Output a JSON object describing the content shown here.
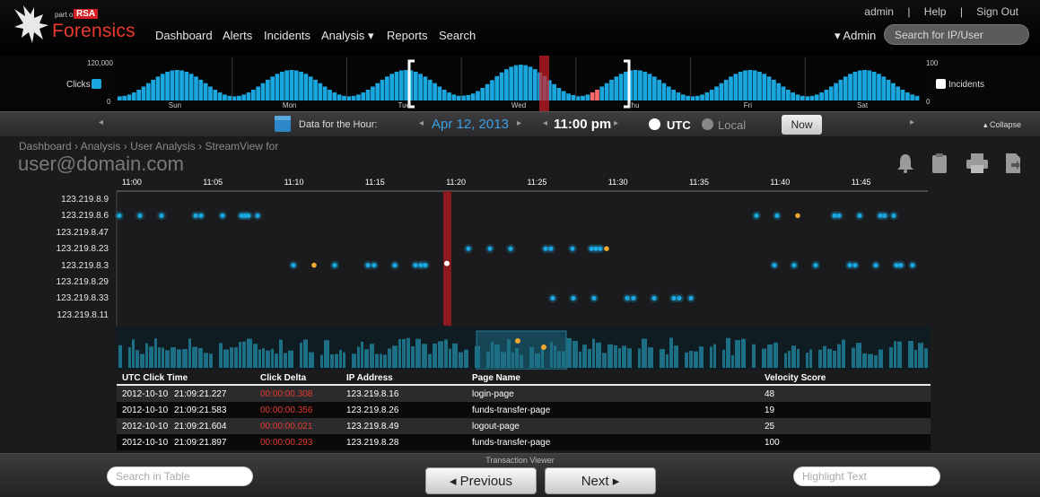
{
  "brand": {
    "part_of": "part of",
    "rsa": "RSA",
    "name": "Forensics"
  },
  "nav": {
    "items": [
      "Dashboard",
      "Alerts",
      "Incidents",
      "Analysis ▾",
      "Reports",
      "Search"
    ]
  },
  "top_links": {
    "admin": "admin",
    "help": "Help",
    "signout": "Sign Out",
    "sep": "|"
  },
  "admin_menu": "▾ Admin",
  "search_top": {
    "placeholder": "Search for IP/User"
  },
  "timeline": {
    "clicks_max": "120,000",
    "clicks_min": "0",
    "clicks_label": "Clicks",
    "incidents_max": "100",
    "incidents_min": "0",
    "incidents_label": "Incidents",
    "days": [
      "Sun",
      "Mon",
      "Tue",
      "Wed",
      "Thu",
      "Fri",
      "Sat"
    ]
  },
  "datebar": {
    "data_for": "Data for the Hour:",
    "date_month_day": "Apr 12,",
    "date_year": "2013",
    "time": "11:00 pm",
    "utc": "UTC",
    "local": "Local",
    "now": "Now",
    "collapse": "▴ Collapse"
  },
  "breadcrumb": [
    "Dashboard",
    "Analysis",
    "User Analysis",
    "StreamView for"
  ],
  "page_title": "user@domain.com",
  "stream": {
    "times": [
      "11:00",
      "11:05",
      "11:10",
      "11:15",
      "11:20",
      "11:25",
      "11:30",
      "11:35",
      "11:40",
      "11:45"
    ],
    "ips": [
      "123.219.8.9",
      "123.219.8.6",
      "123.219.8.47",
      "123.219.8.23",
      "123.219.8.3",
      "123.219.8.29",
      "123.219.8.33",
      "123.219.8.11"
    ]
  },
  "table": {
    "headers": [
      "UTC Click Time",
      "Click Delta",
      "IP Address",
      "Page Name",
      "Velocity Score"
    ],
    "rows": [
      {
        "date": "2012-10-10",
        "time": "21:09:21.227",
        "delta": "00:00:00.308",
        "ip": "123.219.8.16",
        "page": "login-page",
        "score": "48"
      },
      {
        "date": "2012-10-10",
        "time": "21:09:21.583",
        "delta": "00:00:00.356",
        "ip": "123.219.8.26",
        "page": "funds-transfer-page",
        "score": "19"
      },
      {
        "date": "2012-10-10",
        "time": "21:09:21.604",
        "delta": "00:00:00.021",
        "ip": "123.219.8.49",
        "page": "logout-page",
        "score": "25"
      },
      {
        "date": "2012-10-10",
        "time": "21:09:21.897",
        "delta": "00:00:00.293",
        "ip": "123.219.8.28",
        "page": "funds-transfer-page",
        "score": "100"
      }
    ]
  },
  "footer": {
    "transaction_viewer": "Transaction Viewer",
    "search_placeholder": "Search in Table",
    "highlight_placeholder": "Highlight Text",
    "previous": "◂ Previous",
    "next": "Next ▸"
  },
  "colors": {
    "accent": "#1aa7e0",
    "brand_red": "#e8392f",
    "highlight": "#f0a830"
  }
}
